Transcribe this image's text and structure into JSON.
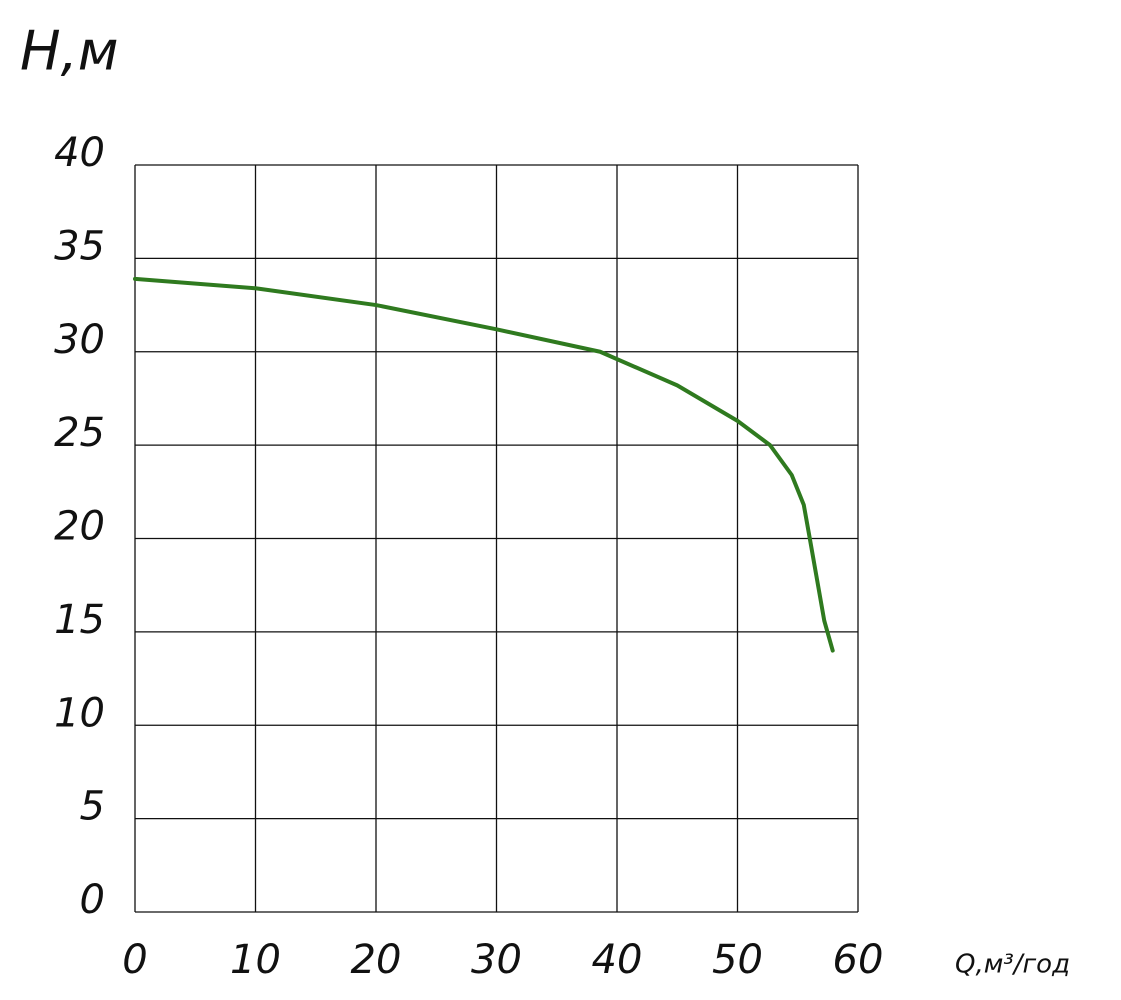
{
  "chart_data": {
    "type": "line",
    "y_label": "H,м",
    "x_label": "Q,м³/год",
    "x": [
      0,
      10,
      20,
      30,
      38.6,
      45,
      50,
      52.7,
      54.5,
      55.5,
      56,
      56.6,
      57.2,
      57.9
    ],
    "series": [
      {
        "name": "H",
        "color": "#2f7a1f",
        "values": [
          33.9,
          33.4,
          32.5,
          31.2,
          30,
          28.2,
          26.3,
          25,
          23.4,
          21.8,
          20,
          17.8,
          15.6,
          14
        ]
      }
    ],
    "xlim": [
      0,
      60
    ],
    "xticks": [
      0,
      10,
      20,
      30,
      40,
      50,
      60
    ],
    "ylim": [
      0,
      40
    ],
    "yticks": [
      0,
      5,
      10,
      15,
      20,
      25,
      30,
      35,
      40
    ],
    "grid": true
  }
}
